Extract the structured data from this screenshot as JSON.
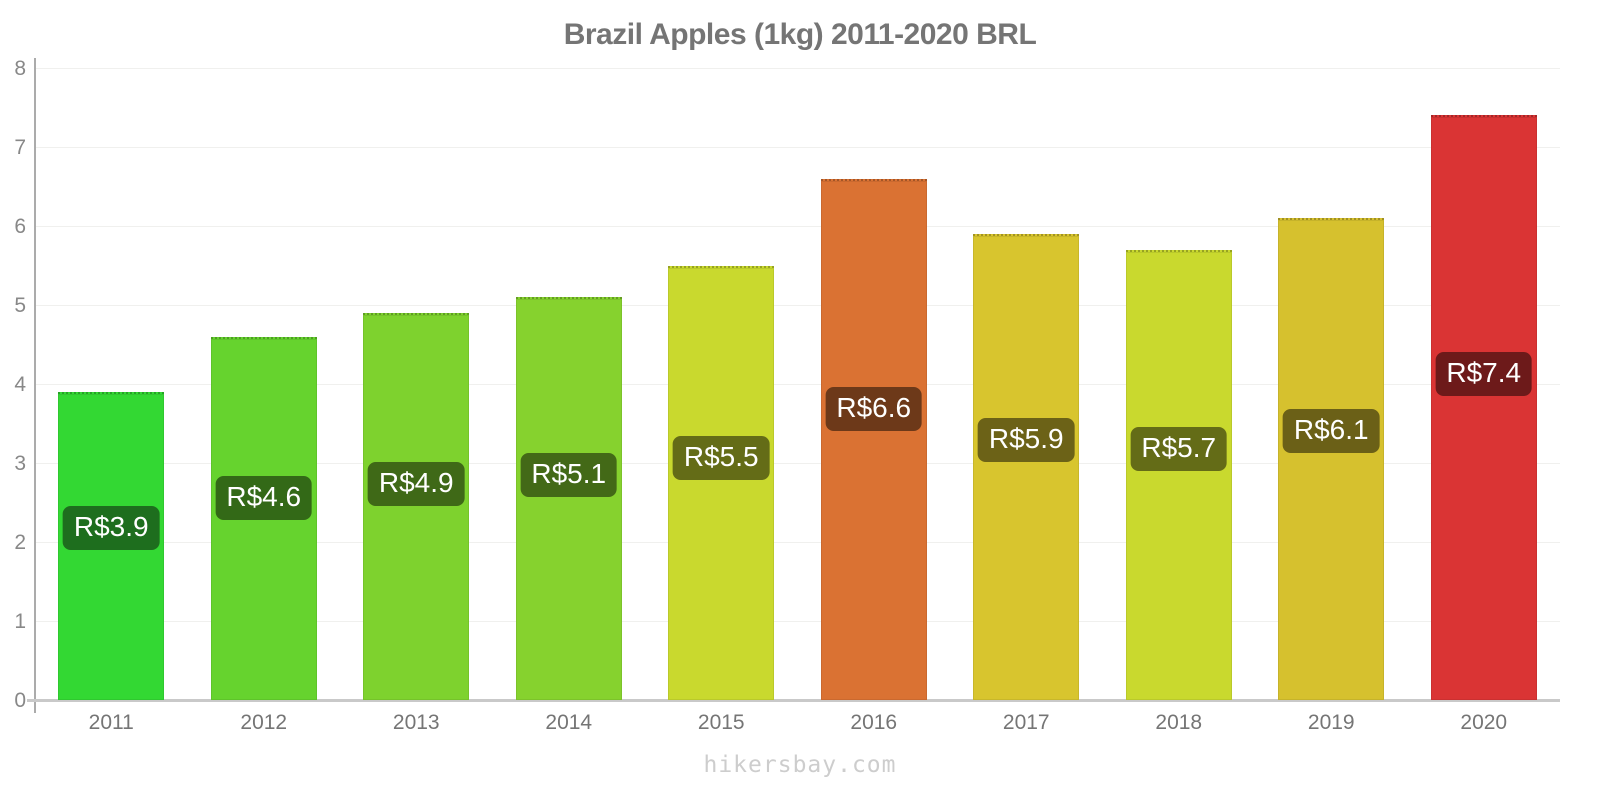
{
  "title": "Brazil Apples (1kg) 2011-2020 BRL",
  "footer": "hikersbay.com",
  "chart_data": {
    "type": "bar",
    "title": "Brazil Apples (1kg) 2011-2020 BRL",
    "categories": [
      "2011",
      "2012",
      "2013",
      "2014",
      "2015",
      "2016",
      "2017",
      "2018",
      "2019",
      "2020"
    ],
    "values": [
      3.9,
      4.6,
      4.9,
      5.1,
      5.5,
      6.6,
      5.9,
      5.7,
      6.1,
      7.4
    ],
    "value_labels": [
      "R$3.9",
      "R$4.6",
      "R$4.9",
      "R$5.1",
      "R$5.5",
      "R$6.6",
      "R$5.9",
      "R$5.7",
      "R$6.1",
      "R$7.4"
    ],
    "bar_colors": [
      "#33d833",
      "#66d32e",
      "#7ed22e",
      "#86d22e",
      "#c9d92e",
      "#da7233",
      "#d8c52e",
      "#c9d92e",
      "#d6c12e",
      "#da3434"
    ],
    "label_bg_colors": [
      "#1e6e1e",
      "#336917",
      "#3f6917",
      "#436917",
      "#646c17",
      "#6d3919",
      "#6c6217",
      "#646c17",
      "#6b6017",
      "#6d1a1a"
    ],
    "currency_prefix": "R$",
    "xlabel": "",
    "ylabel": "",
    "ylim": [
      0,
      8
    ],
    "yticks": [
      0,
      1,
      2,
      3,
      4,
      5,
      6,
      7,
      8
    ],
    "grid": true,
    "legend": false
  }
}
